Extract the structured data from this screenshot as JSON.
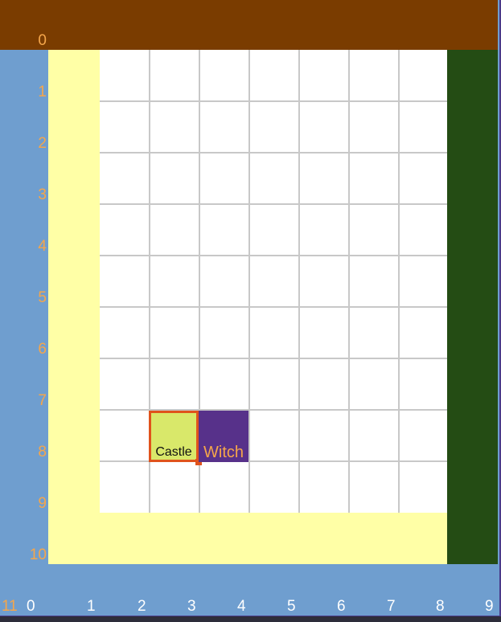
{
  "colors": {
    "top": "#7a3c00",
    "right": "#244c14",
    "side": "#6f9ecf",
    "path": "#ffffa6",
    "castle": "#d9e86a",
    "witch": "#57318a",
    "selection": "#e0531c",
    "label": "#f5a64a"
  },
  "axis": {
    "rows": [
      "0",
      "1",
      "2",
      "3",
      "4",
      "5",
      "6",
      "7",
      "8",
      "9",
      "10"
    ],
    "cols": [
      "0",
      "1",
      "2",
      "3",
      "4",
      "5",
      "6",
      "7",
      "8",
      "9"
    ],
    "corner": "11"
  },
  "pieces": {
    "castle": {
      "label": "Castle",
      "col": 3,
      "row": 8
    },
    "witch": {
      "label": "Witch",
      "col": 4,
      "row": 8
    }
  }
}
